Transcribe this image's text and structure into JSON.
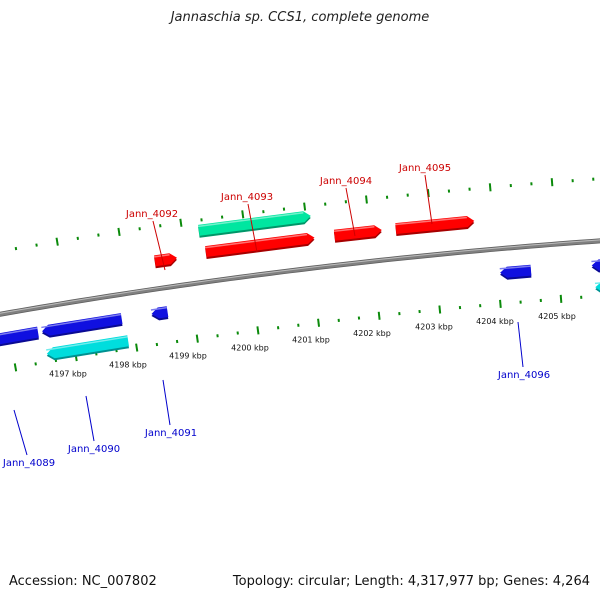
{
  "title": "Jannaschia sp. CCS1, complete genome",
  "footer": {
    "accession": "Accession: NC_007802",
    "summary": "Topology: circular; Length: 4,317,977 bp; Genes: 4,264"
  },
  "colors": {
    "forward_cds": "#ff0000",
    "forward_rna": "#00e6a0",
    "reverse_cds": "#1010e0",
    "reverse_rna": "#00dddd",
    "tick": "#0b8a0b",
    "backbone": "#808080",
    "forward_label": "#cc0000",
    "reverse_label": "#0000cc"
  },
  "scale_labels": [
    "4197 kbp",
    "4198 kbp",
    "4199 kbp",
    "4200 kbp",
    "4201 kbp",
    "4202 kbp",
    "4203 kbp",
    "4204 kbp",
    "4205 kbp"
  ],
  "forward_genes": [
    {
      "label": "Jann_4092"
    },
    {
      "label": "Jann_4093"
    },
    {
      "label": "Jann_4094"
    },
    {
      "label": "Jann_4095"
    }
  ],
  "reverse_genes": [
    {
      "label": "Jann_4089"
    },
    {
      "label": "Jann_4090"
    },
    {
      "label": "Jann_4091"
    },
    {
      "label": "Jann_4096"
    }
  ]
}
